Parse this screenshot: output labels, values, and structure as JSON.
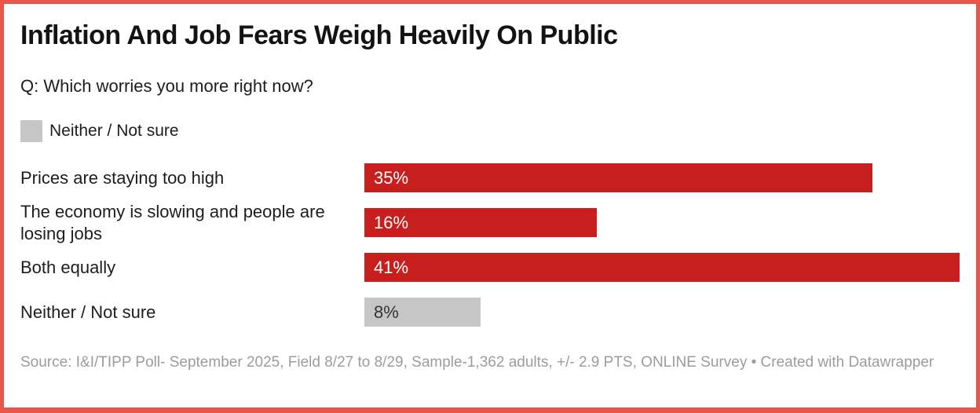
{
  "colors": {
    "frame_border": "#e8564b",
    "bar_red": "#c71e1e",
    "bar_gray": "#c6c6c6",
    "title_text": "#131313",
    "body_text": "#1d1d1d",
    "footer_text": "#9c9c9c"
  },
  "chart_data": {
    "type": "bar",
    "orientation": "horizontal",
    "title": "Inflation And Job Fears Weigh Heavily On Public",
    "subtitle": "Q: Which worries you more right now?",
    "categories": [
      "Prices are staying too high",
      "The economy is slowing and people are losing jobs",
      "Both equally",
      "Neither / Not sure"
    ],
    "values": [
      35,
      16,
      41,
      8
    ],
    "value_labels": [
      "35%",
      "16%",
      "41%",
      "8%"
    ],
    "xlim": [
      0,
      41
    ],
    "bar_colors": [
      "#c71e1e",
      "#c71e1e",
      "#c71e1e",
      "#c6c6c6"
    ],
    "value_label_colors": [
      "#ffffff",
      "#ffffff",
      "#ffffff",
      "#333333"
    ],
    "grid": false,
    "legend_position": "top-left",
    "legend": [
      {
        "label": "Neither / Not sure",
        "color": "#c6c6c6"
      }
    ]
  },
  "footer": {
    "source": "Source: I&I/TIPP Poll- September 2025, Field 8/27 to 8/29, Sample-1,362 adults, +/- 2.9 PTS, ONLINE Survey • Created with Datawrapper"
  }
}
